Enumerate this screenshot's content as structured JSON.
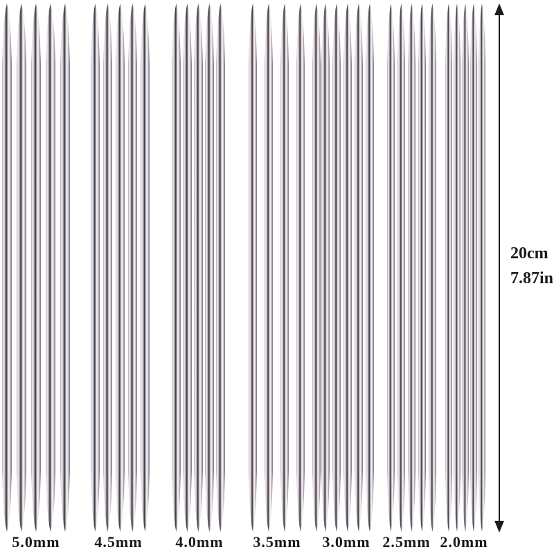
{
  "groups": [
    {
      "label": "5.0mm"
    },
    {
      "label": "4.5mm"
    },
    {
      "label": "4.0mm"
    },
    {
      "label": "3.5mm"
    },
    {
      "label": "3.0mm"
    },
    {
      "label": "2.5mm"
    },
    {
      "label": "2.0mm"
    }
  ],
  "needles_per_group": 5,
  "measurement": {
    "metric": "20cm",
    "imperial": "7.87in"
  },
  "colors": {
    "background": "#ffffff",
    "arrow": "#1c1c1c",
    "text": "#1a1a1a",
    "needle_dark": "#3e3944",
    "needle_mid": "#b5aeb8",
    "needle_highlight": "#f5f3f4"
  }
}
